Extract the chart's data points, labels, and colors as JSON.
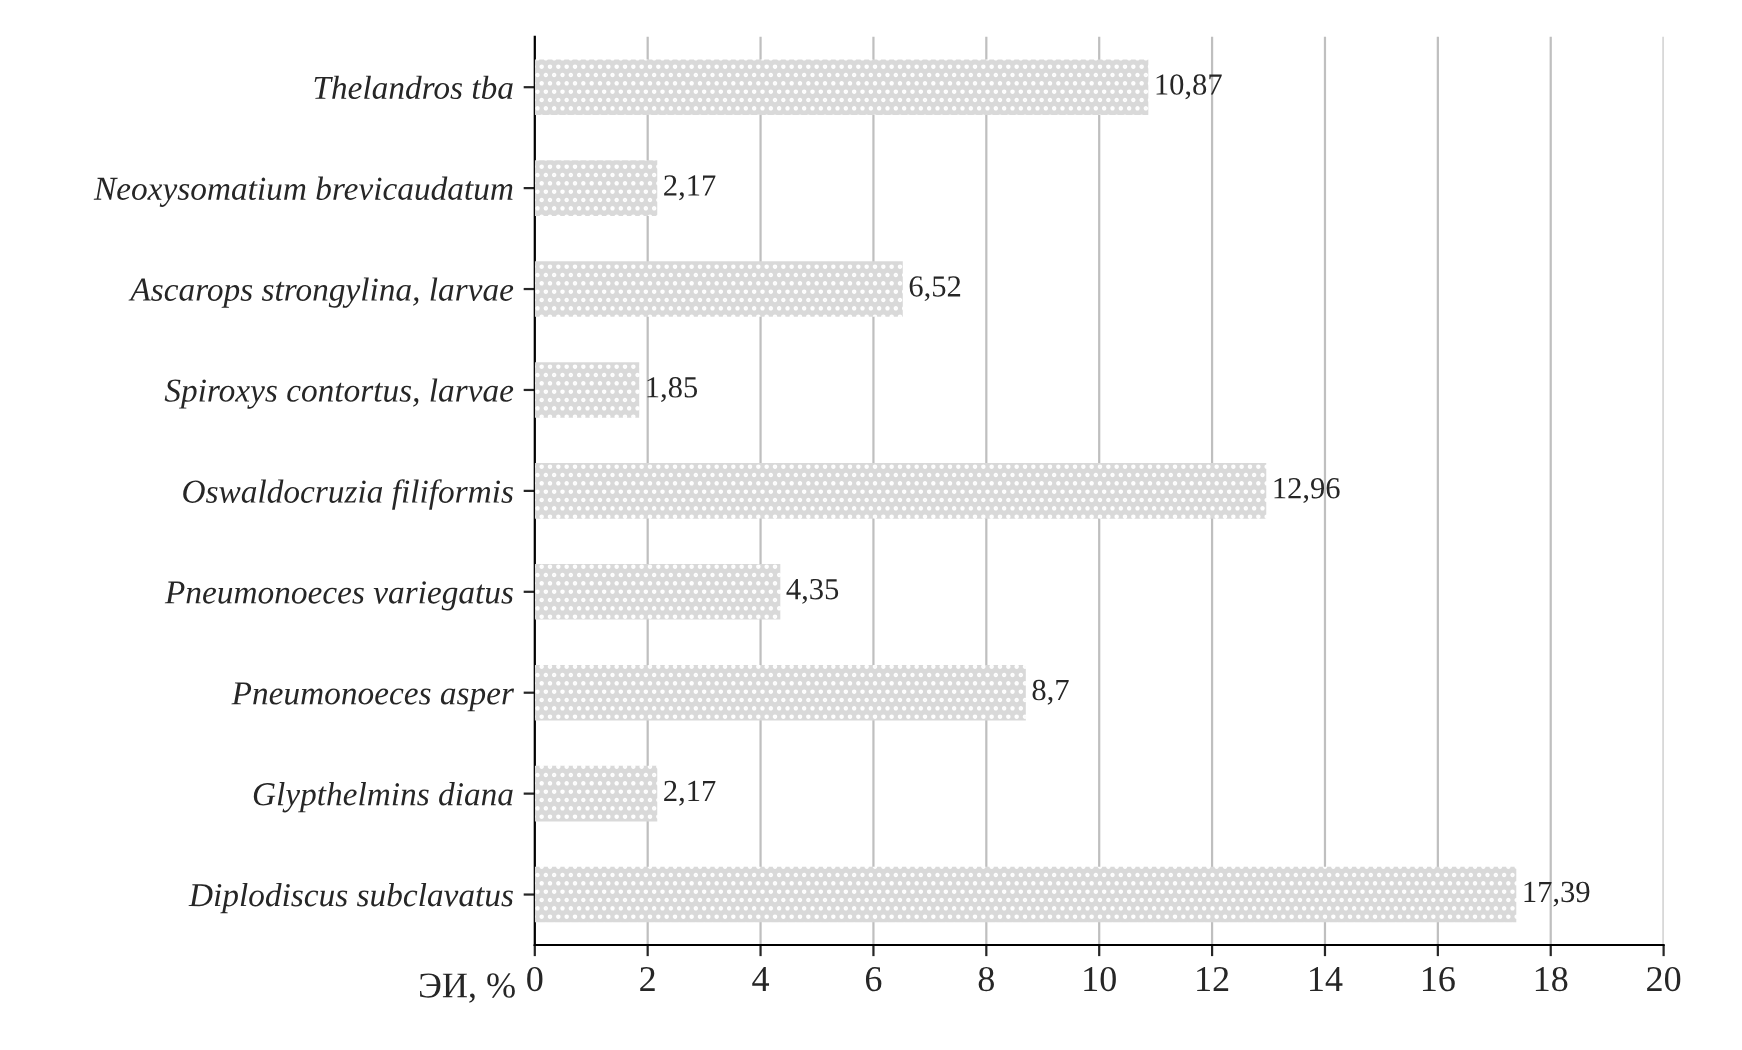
{
  "chart_data": {
    "type": "bar",
    "orientation": "horizontal",
    "xlabel": "ЭИ, %",
    "categories": [
      "Thelandros tba",
      "Neoxysomatium brevicaudatum",
      "Ascarops strongylina, larvae",
      "Spiroxys contortus, larvae",
      "Oswaldocruzia filiformis",
      "Pneumonoeces variegatus",
      "Pneumonoeces asper",
      "Glypthelmins diana",
      "Diplodiscus subclavatus"
    ],
    "values": [
      10.87,
      2.17,
      6.52,
      1.85,
      12.96,
      4.35,
      8.7,
      2.17,
      17.39
    ],
    "value_labels": [
      "10,87",
      "2,17",
      "6,52",
      "1,85",
      "12,96",
      "4,35",
      "8,7",
      "2,17",
      "17,39"
    ],
    "color": "#d9d9d9",
    "xlim": [
      0,
      20
    ],
    "xticks": [
      0,
      2,
      4,
      6,
      8,
      10,
      12,
      14,
      16,
      18,
      20
    ],
    "grid": "x"
  }
}
